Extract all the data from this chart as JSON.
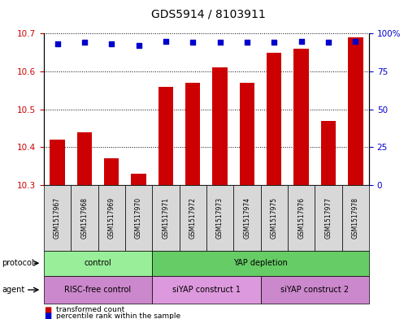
{
  "title": "GDS5914 / 8103911",
  "samples": [
    "GSM1517967",
    "GSM1517968",
    "GSM1517969",
    "GSM1517970",
    "GSM1517971",
    "GSM1517972",
    "GSM1517973",
    "GSM1517974",
    "GSM1517975",
    "GSM1517976",
    "GSM1517977",
    "GSM1517978"
  ],
  "bar_values": [
    10.42,
    10.44,
    10.37,
    10.33,
    10.56,
    10.57,
    10.61,
    10.57,
    10.65,
    10.66,
    10.47,
    10.69
  ],
  "percentile_values": [
    93,
    94,
    93,
    92,
    95,
    94,
    94,
    94,
    94,
    95,
    94,
    95
  ],
  "bar_color": "#cc0000",
  "dot_color": "#0000cc",
  "ylim_left": [
    10.3,
    10.7
  ],
  "ylim_right": [
    0,
    100
  ],
  "yticks_left": [
    10.3,
    10.4,
    10.5,
    10.6,
    10.7
  ],
  "yticks_right": [
    0,
    25,
    50,
    75,
    100
  ],
  "protocol_groups": [
    {
      "label": "control",
      "start": 0,
      "end": 4,
      "color": "#99ee99"
    },
    {
      "label": "YAP depletion",
      "start": 4,
      "end": 12,
      "color": "#66cc66"
    }
  ],
  "agent_groups": [
    {
      "label": "RISC-free control",
      "start": 0,
      "end": 4,
      "color": "#cc88cc"
    },
    {
      "label": "siYAP construct 1",
      "start": 4,
      "end": 8,
      "color": "#dd99dd"
    },
    {
      "label": "siYAP construct 2",
      "start": 8,
      "end": 12,
      "color": "#cc88cc"
    }
  ],
  "legend_items": [
    {
      "label": "transformed count",
      "color": "#cc0000"
    },
    {
      "label": "percentile rank within the sample",
      "color": "#0000cc"
    }
  ]
}
